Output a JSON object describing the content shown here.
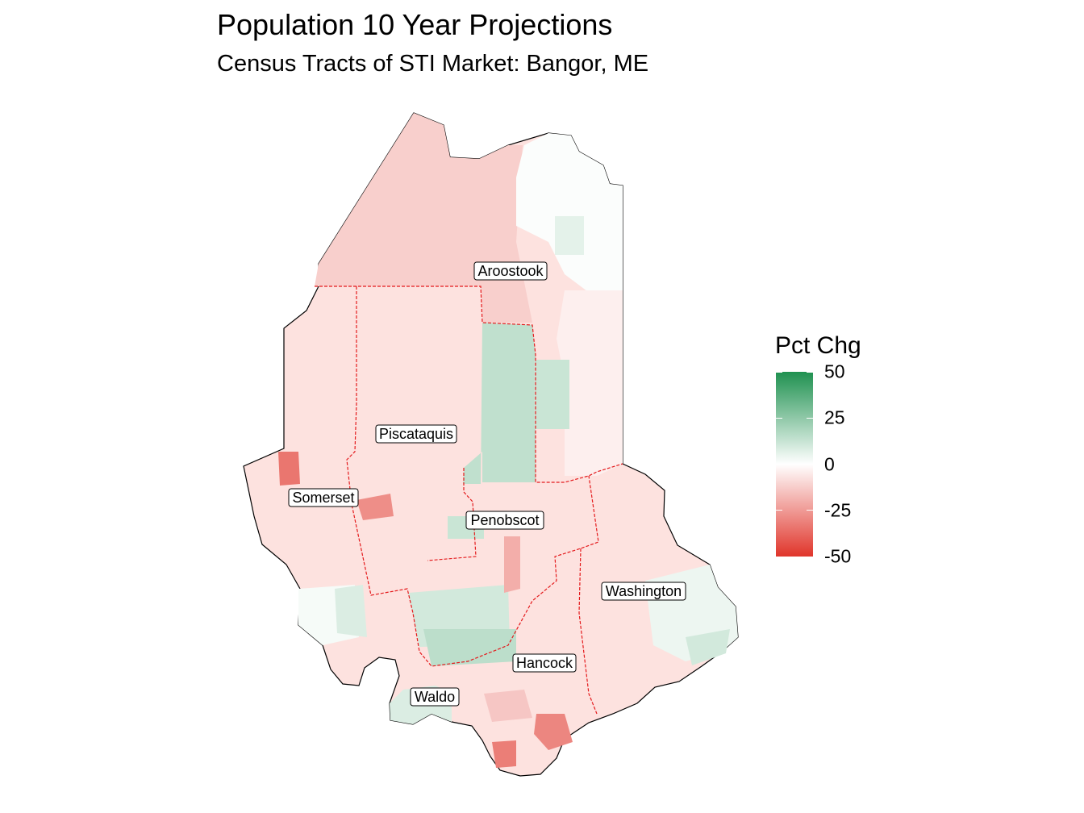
{
  "map": {
    "title": "Population 10 Year Projections",
    "subtitle": "Census Tracts of STI Market: Bangor, ME",
    "measure": "Pct Chg",
    "legend": {
      "title": "Pct Chg",
      "placement": "right",
      "range": [
        -50,
        50
      ],
      "ticks": [
        {
          "value": 50,
          "label": "50"
        },
        {
          "value": 25,
          "label": "25"
        },
        {
          "value": 0,
          "label": "0"
        },
        {
          "value": -25,
          "label": "-25"
        },
        {
          "value": -50,
          "label": "-50"
        }
      ],
      "colors": {
        "low": "#e0352b",
        "mid": "#ffffff",
        "high": "#1f9150"
      }
    },
    "county_boundary_color": "#e41a1c",
    "outline_color": "#000000",
    "counties": [
      {
        "name": "Aroostook",
        "pct_chg": -12
      },
      {
        "name": "Piscataquis",
        "pct_chg": -14
      },
      {
        "name": "Somerset",
        "pct_chg": -18
      },
      {
        "name": "Penobscot",
        "pct_chg": 3
      },
      {
        "name": "Washington",
        "pct_chg": -8
      },
      {
        "name": "Hancock",
        "pct_chg": -4
      },
      {
        "name": "Waldo",
        "pct_chg": -2
      }
    ],
    "tracts": [
      {
        "county": "Aroostook",
        "pct_chg": 1
      },
      {
        "county": "Aroostook",
        "pct_chg": 6
      },
      {
        "county": "Aroostook",
        "pct_chg": -4
      },
      {
        "county": "Penobscot",
        "pct_chg": 14
      },
      {
        "county": "Penobscot",
        "pct_chg": 12
      },
      {
        "county": "Penobscot",
        "pct_chg": 10
      },
      {
        "county": "Penobscot",
        "pct_chg": 15
      },
      {
        "county": "Penobscot",
        "pct_chg": -20
      },
      {
        "county": "Penobscot",
        "pct_chg": 12
      },
      {
        "county": "Somerset",
        "pct_chg": -34
      },
      {
        "county": "Piscataquis",
        "pct_chg": -28
      },
      {
        "county": "Somerset",
        "pct_chg": 2
      },
      {
        "county": "Somerset",
        "pct_chg": 8
      },
      {
        "county": "Waldo",
        "pct_chg": 8
      },
      {
        "county": "Hancock",
        "pct_chg": -30
      },
      {
        "county": "Hancock",
        "pct_chg": -32
      },
      {
        "county": "Hancock",
        "pct_chg": -14
      },
      {
        "county": "Washington",
        "pct_chg": 4
      },
      {
        "county": "Washington",
        "pct_chg": 10
      }
    ]
  }
}
